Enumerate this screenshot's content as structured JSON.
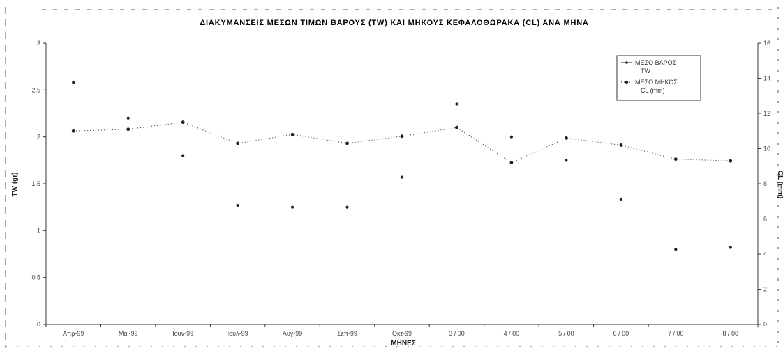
{
  "chart_data": {
    "type": "line",
    "title": "ΔΙΑΚΥΜΑΝΣΕΙΣ ΜΕΣΩΝ ΤΙΜΩΝ ΒΑΡΟΥΣ (TW) ΚΑΙ ΜΗΚΟΥΣ ΚΕΦΑΛΟΘΩΡΑΚΑ (CL) ΑΝΑ ΜΗΝΑ",
    "xlabel": "ΜΗΝΕΣ",
    "ylabel_left": "TW (gr)",
    "ylabel_right": "CL (mm)",
    "categories": [
      "Απρ-99",
      "Μαι-99",
      "Ιουν-99",
      "Ιουλ-99",
      "Αυγ-99",
      "Σεπ-99",
      "Οκτ-99",
      "3 / 00",
      "4 / 00",
      "5 / 00",
      "6 / 00",
      "7 / 00",
      "8 / 00"
    ],
    "y_left": {
      "ylim": [
        0,
        3
      ],
      "ticks": [
        "0",
        "0.5",
        "1",
        "1.5",
        "2",
        "2.5",
        "3"
      ]
    },
    "y_right": {
      "ylim": [
        0,
        16
      ],
      "ticks": [
        "0",
        "2",
        "4",
        "6",
        "8",
        "10",
        "12",
        "14",
        "16"
      ]
    },
    "series": [
      {
        "name": "ΜΕΣΟ ΒΑΡΟΣ TW",
        "axis": "left",
        "style": "points",
        "color": "#222222",
        "values": [
          2.58,
          2.2,
          1.8,
          1.27,
          1.25,
          1.25,
          1.57,
          2.35,
          2.0,
          1.75,
          1.33,
          0.8,
          0.82
        ]
      },
      {
        "name": "ΜΕΣΟ ΜΗΚΟΣ CL (mm)",
        "axis": "right",
        "style": "dotted-line",
        "color": "#222222",
        "values": [
          11.0,
          11.1,
          11.5,
          10.3,
          10.8,
          10.3,
          10.7,
          11.2,
          9.2,
          10.6,
          10.2,
          9.4,
          9.3
        ]
      }
    ],
    "legend": {
      "position": "top-right",
      "entries": [
        "ΜΕΣΟ ΒΑΡΟΣ",
        "TW",
        "ΜΕΣΟ ΜΗΚΟΣ",
        "CL (mm)"
      ]
    },
    "grid": false
  }
}
